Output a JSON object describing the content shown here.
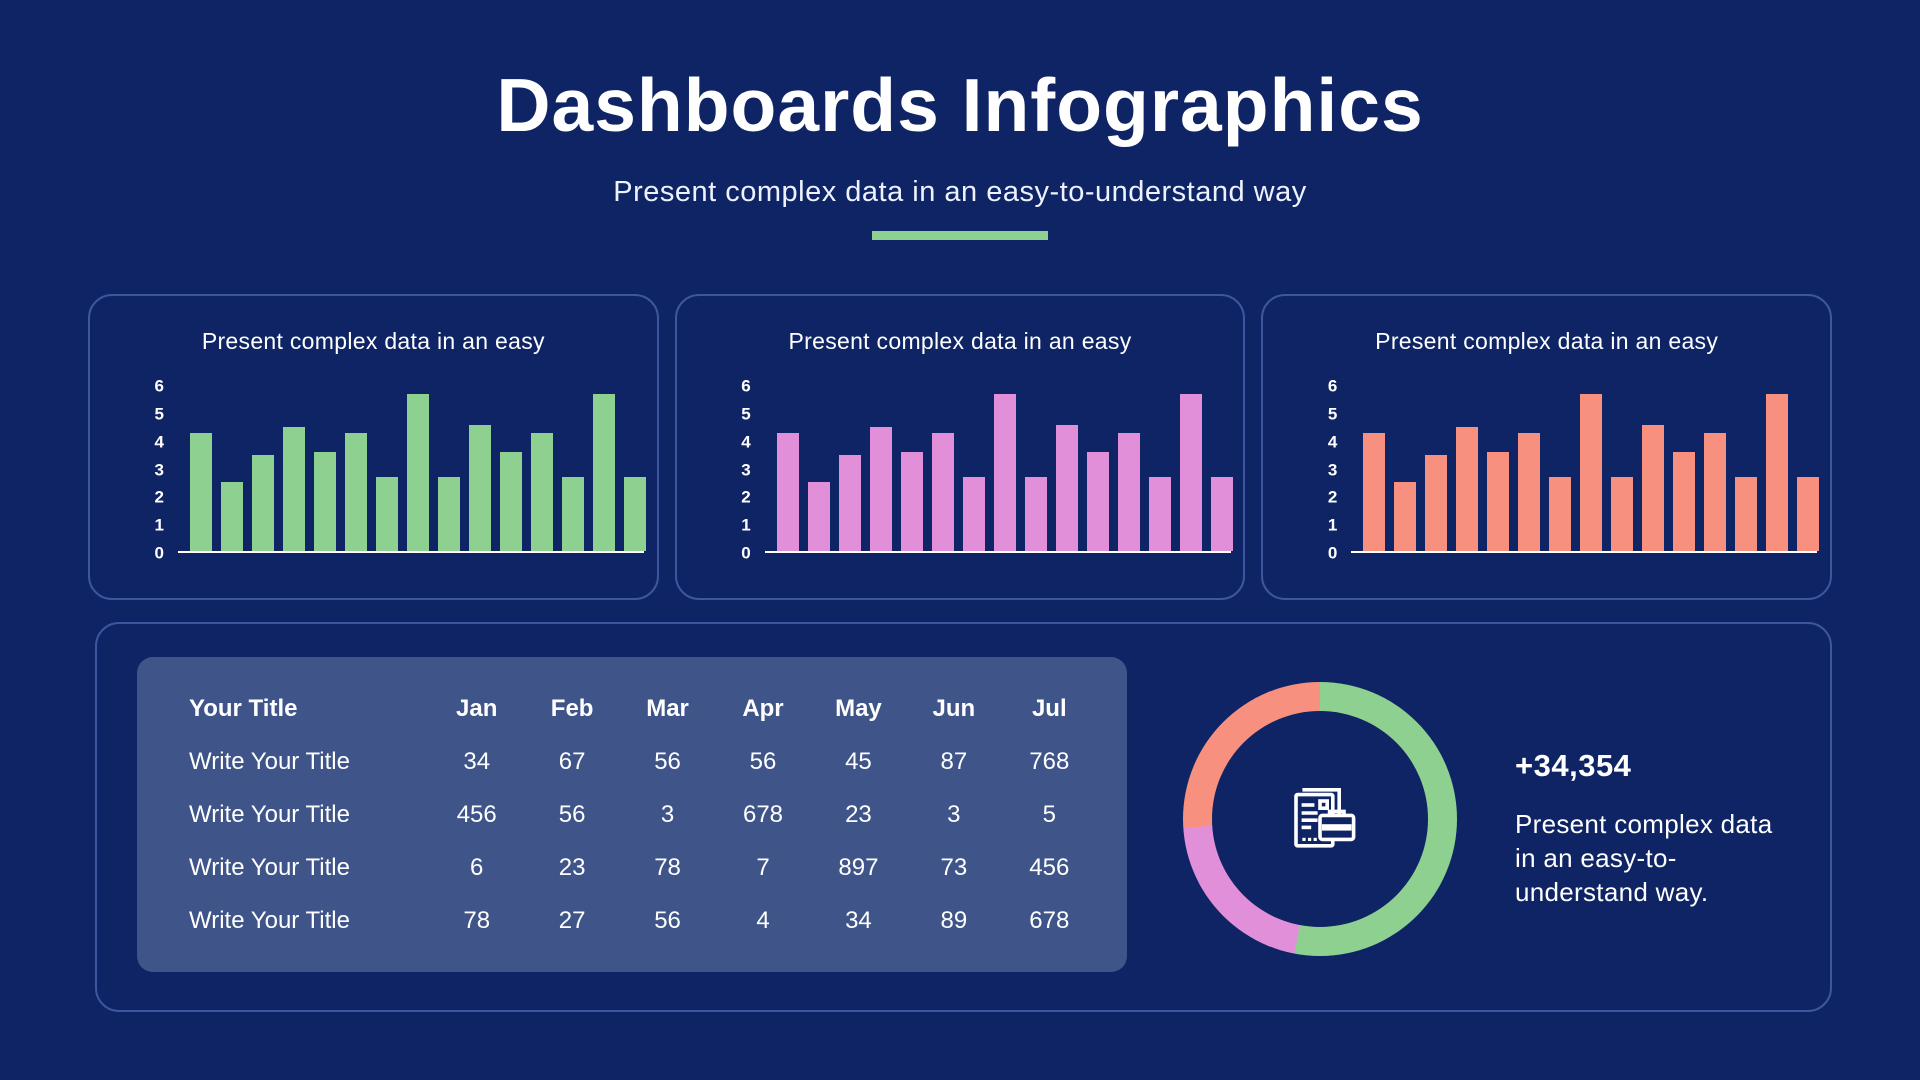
{
  "header": {
    "title": "Dashboards Infographics",
    "subtitle": "Present complex data in an easy-to-understand way"
  },
  "colors": {
    "background": "#0E2464",
    "card_border": "#3A54A0",
    "table_panel": "#3F5589",
    "green": "#8DD08F",
    "orchid": "#E08FD8",
    "salmon": "#F8907F",
    "text": "#FFFFFF"
  },
  "chart_data": [
    {
      "type": "bar",
      "title": "Present complex data in an easy",
      "values": [
        4.3,
        2.5,
        3.5,
        4.5,
        3.6,
        4.3,
        2.7,
        5.7,
        2.7,
        4.6,
        3.6,
        4.3,
        2.7,
        5.7,
        2.7
      ],
      "color": "#8DD08F",
      "ylim": [
        0,
        6
      ],
      "yticks": [
        0,
        1,
        2,
        3,
        4,
        5,
        6
      ],
      "xlabel": "",
      "ylabel": "",
      "grid": false,
      "legend": false
    },
    {
      "type": "bar",
      "title": "Present complex data in an easy",
      "values": [
        4.3,
        2.5,
        3.5,
        4.5,
        3.6,
        4.3,
        2.7,
        5.7,
        2.7,
        4.6,
        3.6,
        4.3,
        2.7,
        5.7,
        2.7
      ],
      "color": "#E08FD8",
      "ylim": [
        0,
        6
      ],
      "yticks": [
        0,
        1,
        2,
        3,
        4,
        5,
        6
      ],
      "xlabel": "",
      "ylabel": "",
      "grid": false,
      "legend": false
    },
    {
      "type": "bar",
      "title": "Present complex data in an easy",
      "values": [
        4.3,
        2.5,
        3.5,
        4.5,
        3.6,
        4.3,
        2.7,
        5.7,
        2.7,
        4.6,
        3.6,
        4.3,
        2.7,
        5.7,
        2.7
      ],
      "color": "#F8907F",
      "ylim": [
        0,
        6
      ],
      "yticks": [
        0,
        1,
        2,
        3,
        4,
        5,
        6
      ],
      "xlabel": "",
      "ylabel": "",
      "grid": false,
      "legend": false
    },
    {
      "type": "pie",
      "donut": true,
      "title": "",
      "segments": [
        {
          "label": "green-segment",
          "value": 53,
          "color": "#8DD08F"
        },
        {
          "label": "orchid-segment",
          "value": 21,
          "color": "#E08FD8"
        },
        {
          "label": "salmon-segment",
          "value": 26,
          "color": "#F8907F"
        }
      ],
      "center_icon": "document-briefcase-icon",
      "legend": false
    }
  ],
  "table": {
    "header_label": "Your Title",
    "columns": [
      "Jan",
      "Feb",
      "Mar",
      "Apr",
      "May",
      "Jun",
      "Jul"
    ],
    "rows": [
      {
        "label": "Write Your Title",
        "values": [
          34,
          67,
          56,
          56,
          45,
          87,
          768
        ]
      },
      {
        "label": "Write Your Title",
        "values": [
          456,
          56,
          3,
          678,
          23,
          3,
          5
        ]
      },
      {
        "label": "Write Your Title",
        "values": [
          6,
          23,
          78,
          7,
          897,
          73,
          456
        ]
      },
      {
        "label": "Write Your Title",
        "values": [
          78,
          27,
          56,
          4,
          34,
          89,
          678
        ]
      }
    ]
  },
  "stat": {
    "value": "+34,354",
    "description": "Present complex data in an easy-to-understand way."
  }
}
